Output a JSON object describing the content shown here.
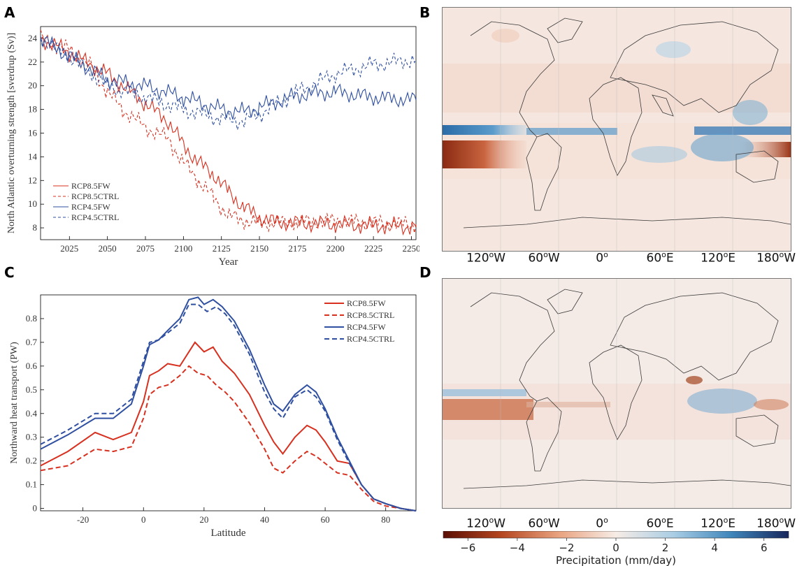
{
  "panels": {
    "a": {
      "letter": "A"
    },
    "b": {
      "letter": "B"
    },
    "c": {
      "letter": "C"
    },
    "d": {
      "letter": "D"
    }
  },
  "map_lon_labels": [
    {
      "num": "120",
      "deg": "o",
      "dir": "W"
    },
    {
      "num": "60",
      "deg": "o",
      "dir": "W"
    },
    {
      "num": "0",
      "deg": "o",
      "dir": ""
    },
    {
      "num": "60",
      "deg": "o",
      "dir": "E"
    },
    {
      "num": "120",
      "deg": "o",
      "dir": "E"
    },
    {
      "num": "180",
      "deg": "o",
      "dir": "W"
    }
  ],
  "colorbar": {
    "label": "Precipitation (mm/day)",
    "ticks": [
      "−6",
      "−4",
      "−2",
      "0",
      "2",
      "4",
      "6"
    ],
    "range": [
      -7,
      7
    ],
    "colors": [
      "#5a0f05",
      "#b4451f",
      "#e9a27f",
      "#f7ece6",
      "#a9cde4",
      "#3f86bb",
      "#17265c"
    ]
  },
  "chart_data": [
    {
      "type": "line",
      "panel": "A",
      "xlabel": "Year",
      "ylabel": "North Atlantic overturning strength [sverdrup (Sv)]",
      "xlim": [
        2006,
        2253
      ],
      "ylim": [
        7,
        25
      ],
      "xticks": [
        "2025",
        "2050",
        "2075",
        "2100",
        "2125",
        "2150",
        "2175",
        "2200",
        "2225",
        "2250"
      ],
      "yticks": [
        "8",
        "10",
        "12",
        "14",
        "16",
        "18",
        "20",
        "22",
        "24"
      ],
      "legend_position": "bottom-left",
      "series": [
        {
          "name": "RCP8.5FW",
          "color": "#d7301f",
          "dash": "solid",
          "x": [
            2006,
            2025,
            2050,
            2075,
            2090,
            2100,
            2110,
            2120,
            2130,
            2140,
            2150,
            2160,
            2175,
            2200,
            2225,
            2253
          ],
          "y": [
            24,
            22.8,
            21.0,
            18.5,
            17.0,
            15.0,
            13.5,
            12.5,
            11.0,
            9.7,
            8.9,
            8.5,
            8.4,
            8.3,
            8.2,
            8.1
          ]
        },
        {
          "name": "RCP8.5CTRL",
          "color": "#d7301f",
          "dash": "dashed",
          "x": [
            2006,
            2025,
            2040,
            2050,
            2060,
            2075,
            2090,
            2100,
            2110,
            2120,
            2130,
            2140,
            2150,
            2175,
            2200,
            2225,
            2253
          ],
          "y": [
            24,
            23.0,
            21.5,
            19.5,
            18.0,
            16.5,
            15.5,
            13.5,
            12.0,
            10.5,
            9.0,
            8.6,
            8.4,
            8.5,
            8.6,
            8.4,
            8.3
          ]
        },
        {
          "name": "RCP4.5FW",
          "color": "#2f4fa0",
          "dash": "solid",
          "x": [
            2006,
            2025,
            2050,
            2075,
            2100,
            2125,
            2140,
            2150,
            2175,
            2200,
            2225,
            2253
          ],
          "y": [
            24,
            22.5,
            20.5,
            20.0,
            19.0,
            18.0,
            17.8,
            18.2,
            19.2,
            19.5,
            19.0,
            18.8
          ]
        },
        {
          "name": "RCP4.5CTRL",
          "color": "#2f4fa0",
          "dash": "dashed",
          "x": [
            2006,
            2025,
            2050,
            2075,
            2100,
            2125,
            2140,
            2150,
            2175,
            2200,
            2225,
            2253
          ],
          "y": [
            24,
            22.5,
            20.0,
            19.0,
            18.0,
            17.2,
            17.0,
            17.6,
            19.5,
            21.0,
            21.8,
            22.2
          ]
        }
      ]
    },
    {
      "type": "line",
      "panel": "C",
      "xlabel": "Latitude",
      "ylabel": "Northward heat transport (PW)",
      "xlim": [
        -34,
        90
      ],
      "ylim": [
        -0.01,
        0.9
      ],
      "xticks": [
        "-20",
        "0",
        "20",
        "40",
        "60",
        "80"
      ],
      "yticks": [
        "0",
        "0.1",
        "0.2",
        "0.3",
        "0.4",
        "0.5",
        "0.6",
        "0.7",
        "0.8"
      ],
      "legend_position": "top-right",
      "series": [
        {
          "name": "RCP8.5FW",
          "color": "#d7301f",
          "dash": "solid",
          "x": [
            -34,
            -25,
            -16,
            -10,
            -4,
            0,
            2,
            5,
            8,
            12,
            17,
            20,
            23,
            26,
            30,
            35,
            40,
            43,
            46,
            50,
            54,
            57,
            60,
            64,
            68,
            72,
            76,
            80,
            85,
            90
          ],
          "y": [
            0.18,
            0.24,
            0.32,
            0.29,
            0.32,
            0.45,
            0.56,
            0.58,
            0.61,
            0.6,
            0.7,
            0.66,
            0.68,
            0.62,
            0.57,
            0.48,
            0.35,
            0.28,
            0.23,
            0.3,
            0.35,
            0.33,
            0.28,
            0.2,
            0.19,
            0.1,
            0.04,
            0.02,
            0.0,
            -0.01
          ]
        },
        {
          "name": "RCP8.5CTRL",
          "color": "#d7301f",
          "dash": "dashed",
          "x": [
            -34,
            -25,
            -16,
            -10,
            -4,
            0,
            2,
            5,
            8,
            12,
            15,
            18,
            21,
            24,
            27,
            30,
            35,
            40,
            43,
            46,
            50,
            54,
            57,
            60,
            64,
            68,
            72,
            76,
            80,
            85,
            90
          ],
          "y": [
            0.16,
            0.18,
            0.25,
            0.24,
            0.26,
            0.38,
            0.48,
            0.51,
            0.52,
            0.56,
            0.6,
            0.57,
            0.56,
            0.52,
            0.49,
            0.45,
            0.36,
            0.25,
            0.17,
            0.15,
            0.2,
            0.24,
            0.22,
            0.19,
            0.15,
            0.14,
            0.08,
            0.03,
            0.01,
            0.0,
            -0.01
          ]
        },
        {
          "name": "RCP4.5FW",
          "color": "#2f4fa0",
          "dash": "solid",
          "x": [
            -34,
            -25,
            -16,
            -10,
            -4,
            0,
            2,
            5,
            8,
            12,
            15,
            18,
            20,
            23,
            26,
            30,
            35,
            40,
            43,
            46,
            50,
            54,
            57,
            60,
            64,
            68,
            72,
            76,
            80,
            85,
            90
          ],
          "y": [
            0.25,
            0.31,
            0.38,
            0.38,
            0.44,
            0.6,
            0.69,
            0.71,
            0.75,
            0.8,
            0.88,
            0.89,
            0.86,
            0.88,
            0.85,
            0.79,
            0.67,
            0.52,
            0.44,
            0.41,
            0.48,
            0.52,
            0.49,
            0.42,
            0.3,
            0.2,
            0.1,
            0.04,
            0.02,
            0.0,
            -0.01
          ]
        },
        {
          "name": "RCP4.5CTRL",
          "color": "#2f4fa0",
          "dash": "dashed",
          "x": [
            -34,
            -25,
            -16,
            -10,
            -4,
            0,
            2,
            5,
            8,
            12,
            15,
            18,
            21,
            24,
            27,
            30,
            35,
            40,
            43,
            46,
            50,
            54,
            57,
            60,
            64,
            68,
            72,
            76,
            80,
            85,
            90
          ],
          "y": [
            0.27,
            0.33,
            0.4,
            0.4,
            0.46,
            0.62,
            0.7,
            0.71,
            0.74,
            0.78,
            0.86,
            0.86,
            0.83,
            0.85,
            0.82,
            0.77,
            0.65,
            0.49,
            0.42,
            0.38,
            0.47,
            0.5,
            0.47,
            0.41,
            0.29,
            0.19,
            0.1,
            0.04,
            0.02,
            0.0,
            -0.01
          ]
        }
      ]
    }
  ]
}
